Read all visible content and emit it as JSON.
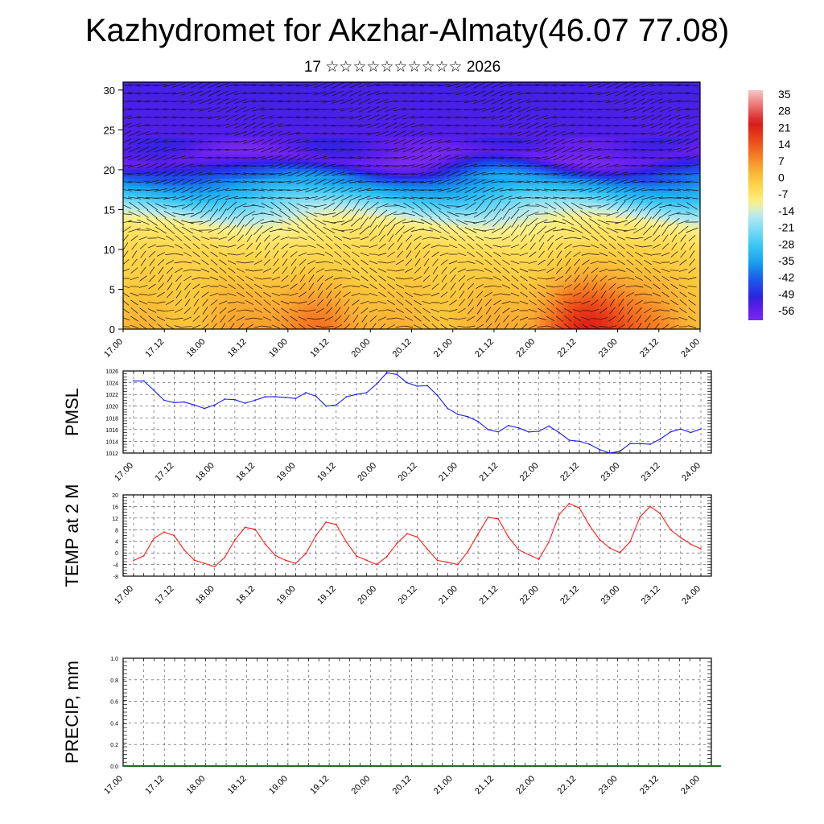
{
  "title": "Kazhydromet for Akzhar-Almaty(46.07 77.08)",
  "subtitle": "17 ☆☆☆☆☆☆☆☆☆☆ 2026",
  "colors": {
    "pmsl_line": "#1a1aff",
    "temp_line": "#ff1a1a",
    "precip_line": "#1f6b2a",
    "vector": "#111111"
  },
  "chart_data": [
    {
      "id": "cross_section",
      "type": "heatmap",
      "title": "",
      "xlabel": "",
      "ylabel": "",
      "x_ticks": [
        "17.00",
        "17.12",
        "18.00",
        "18.12",
        "19.00",
        "19.12",
        "20.00",
        "20.12",
        "21.00",
        "21.12",
        "22.00",
        "22.12",
        "23.00",
        "23.12",
        "24.00"
      ],
      "y_ticks": [
        0,
        5,
        10,
        15,
        20,
        25,
        30
      ],
      "ylim": [
        0,
        31
      ],
      "colorbar": {
        "labels": [
          "35",
          "28",
          "21",
          "14",
          "7",
          "0",
          "-7",
          "-14",
          "-21",
          "-28",
          "-35",
          "-42",
          "-49",
          "-56"
        ],
        "range": [
          -60,
          38
        ]
      },
      "temperature_profile_by_level": [
        {
          "level": 0,
          "value": 3
        },
        {
          "level": 5,
          "value": 0
        },
        {
          "level": 9,
          "value": -3
        },
        {
          "level": 12,
          "value": -7
        },
        {
          "level": 13.5,
          "value": -11
        },
        {
          "level": 15,
          "value": -18
        },
        {
          "level": 17,
          "value": -30
        },
        {
          "level": 19,
          "value": -40
        },
        {
          "level": 20.5,
          "value": -52
        },
        {
          "level": 21.5,
          "value": -58
        },
        {
          "level": 23,
          "value": -54
        },
        {
          "level": 27,
          "value": -53
        },
        {
          "level": 31,
          "value": -52
        }
      ],
      "surface_warm_spots": [
        {
          "x": 1.75,
          "value": 6
        },
        {
          "x": 2.45,
          "value": 9
        },
        {
          "x": 5.5,
          "value": 10
        },
        {
          "x": 5.75,
          "value": 14
        },
        {
          "x": 6.2,
          "value": 8
        }
      ]
    },
    {
      "id": "pmsl",
      "type": "line",
      "ylabel": "PMSL",
      "x_ticks": [
        "17.00",
        "17.12",
        "18.00",
        "18.12",
        "19.00",
        "19.12",
        "20.00",
        "20.12",
        "21.00",
        "21.12",
        "22.00",
        "22.12",
        "23.00",
        "23.12",
        "24.00"
      ],
      "y_ticks": [
        1012,
        1014,
        1016,
        1018,
        1020,
        1022,
        1024,
        1026
      ],
      "ylim": [
        1012,
        1026
      ],
      "step_hours": 3,
      "values": [
        1024.3,
        1024.3,
        1022.7,
        1021.0,
        1020.6,
        1020.7,
        1020.2,
        1019.6,
        1020.2,
        1021.2,
        1021.1,
        1020.5,
        1021.0,
        1021.6,
        1021.6,
        1021.5,
        1021.3,
        1022.3,
        1021.7,
        1020.0,
        1020.2,
        1021.6,
        1022.0,
        1022.3,
        1023.8,
        1025.7,
        1025.4,
        1024.0,
        1023.4,
        1023.5,
        1021.8,
        1019.6,
        1018.6,
        1018.2,
        1017.4,
        1016.0,
        1015.6,
        1016.7,
        1016.3,
        1015.6,
        1015.7,
        1016.6,
        1015.5,
        1014.2,
        1014.0,
        1013.5,
        1012.6,
        1012.0,
        1012.3,
        1013.6,
        1013.6,
        1013.5,
        1014.4,
        1015.6,
        1016.1,
        1015.5,
        1016.1
      ]
    },
    {
      "id": "temp2m",
      "type": "line",
      "ylabel": "TEMP at 2 M",
      "x_ticks": [
        "17.00",
        "17.12",
        "18.00",
        "18.12",
        "19.00",
        "19.12",
        "20.00",
        "20.12",
        "21.00",
        "21.12",
        "22.00",
        "22.12",
        "23.00",
        "23.12",
        "24.00"
      ],
      "y_ticks": [
        -8,
        -4,
        0,
        4,
        8,
        12,
        16,
        20
      ],
      "ylim": [
        -8,
        20
      ],
      "step_hours": 3,
      "values": [
        -2.6,
        -1,
        5,
        7.2,
        6,
        1,
        -2.5,
        -3.6,
        -4.7,
        -1.5,
        4.5,
        8.8,
        8.2,
        3,
        -0.9,
        -2.5,
        -3.6,
        -0.3,
        6,
        10.6,
        9.8,
        3.8,
        -1.1,
        -2.5,
        -4,
        -1.3,
        3.3,
        6.6,
        5.5,
        1.3,
        -2.6,
        -3.2,
        -4,
        0.5,
        6.5,
        12.3,
        11.7,
        5.5,
        1.1,
        -0.6,
        -2.2,
        3.8,
        13.2,
        17,
        15.5,
        9.5,
        4.6,
        1.7,
        0.1,
        3.8,
        12.5,
        16,
        13.5,
        8,
        5.3,
        3,
        1.4
      ]
    },
    {
      "id": "precip",
      "type": "line",
      "ylabel": "PRECIP, mm",
      "x_ticks": [
        "17.00",
        "17.12",
        "18.00",
        "18.12",
        "19.00",
        "19.12",
        "20.00",
        "20.12",
        "21.00",
        "21.12",
        "22.00",
        "22.12",
        "23.00",
        "23.12",
        "24.00"
      ],
      "y_ticks": [
        "0.0",
        "0.2",
        "0.4",
        "0.6",
        "0.8",
        "1.0"
      ],
      "ylim": [
        0,
        1
      ],
      "step_hours": 3,
      "values": [
        0,
        0,
        0,
        0,
        0,
        0,
        0,
        0,
        0,
        0,
        0,
        0,
        0,
        0,
        0,
        0,
        0,
        0,
        0,
        0,
        0,
        0,
        0,
        0,
        0,
        0,
        0,
        0,
        0,
        0,
        0,
        0,
        0,
        0,
        0,
        0,
        0,
        0,
        0,
        0,
        0,
        0,
        0,
        0,
        0,
        0,
        0,
        0,
        0,
        0,
        0,
        0,
        0,
        0,
        0,
        0,
        0,
        0,
        0
      ]
    }
  ]
}
